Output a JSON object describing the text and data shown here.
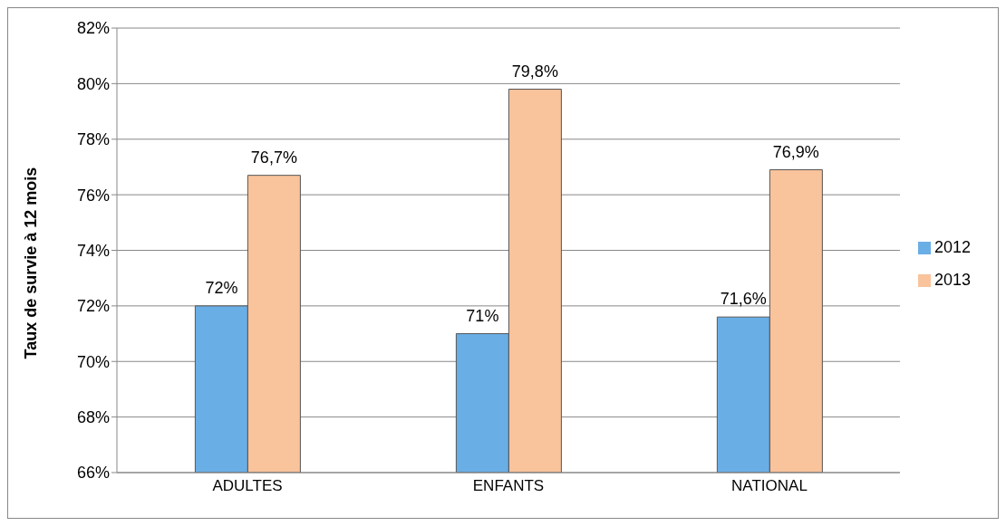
{
  "chart_data": {
    "type": "bar",
    "ylabel": "Taux de survie à 12 mois",
    "categories": [
      "ADULTES",
      "ENFANTS",
      "NATIONAL"
    ],
    "series": [
      {
        "name": "2012",
        "color": "#6aaee6",
        "values": [
          72,
          71,
          71.6
        ],
        "value_labels": [
          "72%",
          "71%",
          "71,6%"
        ]
      },
      {
        "name": "2013",
        "color": "#f9c39c",
        "values": [
          76.7,
          79.8,
          76.9
        ],
        "value_labels": [
          "76,7%",
          "79,8%",
          "76,9%"
        ]
      }
    ],
    "ylim": [
      66,
      82
    ],
    "yticks": [
      {
        "value": 66,
        "label": "66%"
      },
      {
        "value": 68,
        "label": "68%"
      },
      {
        "value": 70,
        "label": "70%"
      },
      {
        "value": 72,
        "label": "72%"
      },
      {
        "value": 74,
        "label": "74%"
      },
      {
        "value": 76,
        "label": "76%"
      },
      {
        "value": 78,
        "label": "78%"
      },
      {
        "value": 80,
        "label": "80%"
      },
      {
        "value": 82,
        "label": "82%"
      }
    ],
    "grid": "y",
    "legend": "right"
  }
}
